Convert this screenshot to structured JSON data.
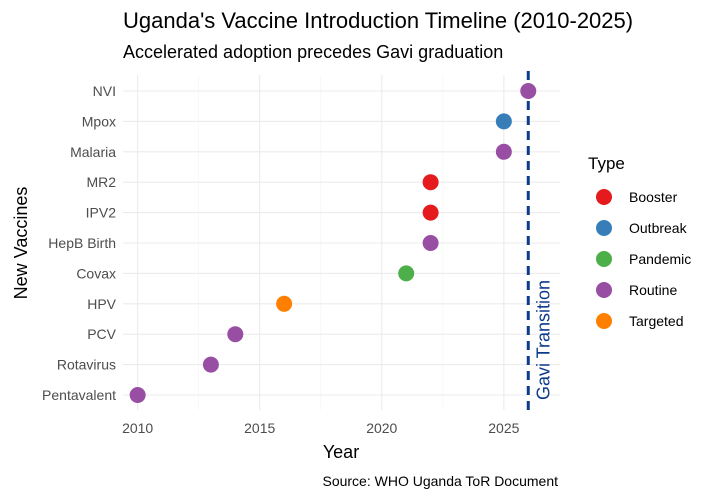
{
  "chart_data": {
    "type": "scatter",
    "title": "Uganda's Vaccine Introduction Timeline (2010-2025)",
    "subtitle": "Accelerated adoption precedes Gavi graduation",
    "xlabel": "Year",
    "ylabel": "New Vaccines",
    "caption": "Source: WHO Uganda ToR Document",
    "xlim": [
      2009.4,
      2027.3
    ],
    "xticks": [
      "2010",
      "2015",
      "2020",
      "2025"
    ],
    "xtick_values": [
      2010,
      2015,
      2020,
      2025
    ],
    "categories": [
      "Pentavalent",
      "Rotavirus",
      "PCV",
      "HPV",
      "Covax",
      "HepB Birth",
      "IPV2",
      "MR2",
      "Malaria",
      "Mpox",
      "NVI"
    ],
    "points": [
      {
        "vaccine": "Pentavalent",
        "year": 2010,
        "type": "Routine"
      },
      {
        "vaccine": "Rotavirus",
        "year": 2013,
        "type": "Routine"
      },
      {
        "vaccine": "PCV",
        "year": 2014,
        "type": "Routine"
      },
      {
        "vaccine": "HPV",
        "year": 2016,
        "type": "Targeted"
      },
      {
        "vaccine": "Covax",
        "year": 2021,
        "type": "Pandemic"
      },
      {
        "vaccine": "HepB Birth",
        "year": 2022,
        "type": "Routine"
      },
      {
        "vaccine": "IPV2",
        "year": 2022,
        "type": "Booster"
      },
      {
        "vaccine": "MR2",
        "year": 2022,
        "type": "Booster"
      },
      {
        "vaccine": "Malaria",
        "year": 2025,
        "type": "Routine"
      },
      {
        "vaccine": "Mpox",
        "year": 2025,
        "type": "Outbreak"
      },
      {
        "vaccine": "NVI",
        "year": 2026,
        "type": "Routine"
      }
    ],
    "legend": {
      "title": "Type",
      "placement": "right",
      "items": [
        {
          "label": "Booster",
          "color": "#e41a1c"
        },
        {
          "label": "Outbreak",
          "color": "#377eb8"
        },
        {
          "label": "Pandemic",
          "color": "#4daf4a"
        },
        {
          "label": "Routine",
          "color": "#984ea3"
        },
        {
          "label": "Targeted",
          "color": "#ff7f00"
        }
      ]
    },
    "reference_line": {
      "x": 2026,
      "label": "Gavi Transition",
      "color": "#0d3b8c",
      "style": "dashed"
    },
    "grid": true
  }
}
